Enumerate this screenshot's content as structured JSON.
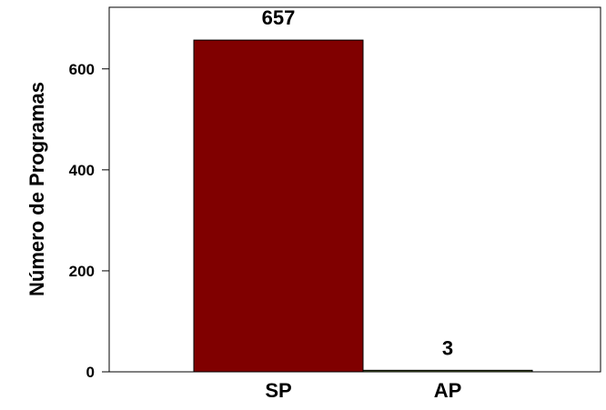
{
  "chart_data": {
    "type": "bar",
    "title": "",
    "xlabel": "",
    "ylabel": "Número de Programas",
    "categories": [
      "SP",
      "AP"
    ],
    "values": [
      657,
      3
    ],
    "data_labels": [
      "657",
      "3"
    ],
    "ylim": [
      0,
      722
    ],
    "yticks": [
      0,
      200,
      400,
      600
    ],
    "ytick_labels": [
      "0",
      "200",
      "400",
      "600"
    ],
    "grid": false,
    "legend": "none",
    "colors": {
      "bars": [
        "#800000",
        "#556b2f"
      ],
      "bar_stroke": "#000000",
      "axis": "#000000"
    }
  }
}
